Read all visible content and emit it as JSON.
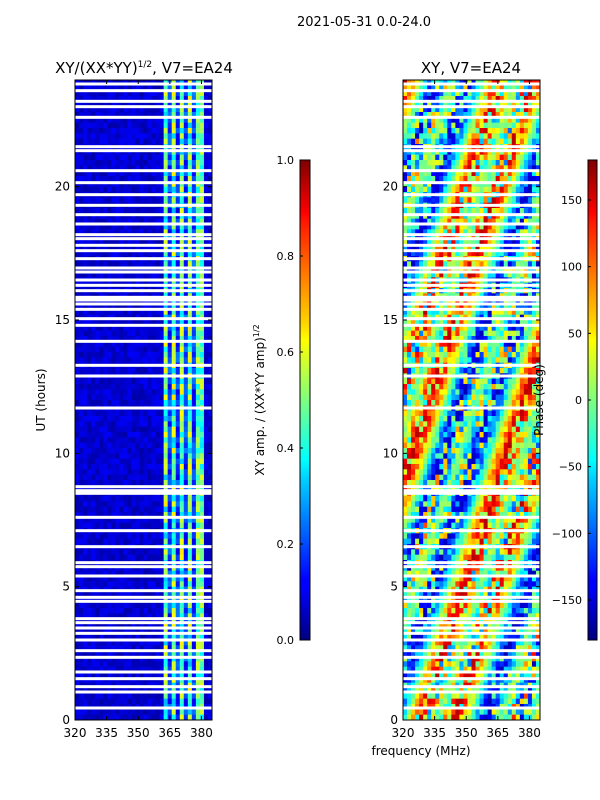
{
  "figure": {
    "suptitle": "2021-05-31 0.0-24.0",
    "xlabel": "frequency (MHz)"
  },
  "chart_data": [
    {
      "type": "heatmap",
      "id": "amp",
      "title_prefix": "XY/(XX*YY)",
      "title_sup": "1/2",
      "title_suffix": ", V7=EA24",
      "xlabel": "",
      "ylabel": "UT (hours)",
      "xlim": [
        320,
        385
      ],
      "ylim": [
        0,
        24
      ],
      "x_ticks": [
        320,
        335,
        350,
        365,
        380
      ],
      "y_ticks": [
        0,
        5,
        10,
        15,
        20
      ],
      "colormap": "jet",
      "colorbar": {
        "label_prefix": "XY amp. / (XX*YY amp)",
        "label_sup": "1/2",
        "vmin": 0.0,
        "vmax": 1.0,
        "ticks": [
          0.0,
          0.2,
          0.4,
          0.6,
          0.8,
          1.0
        ],
        "tick_labels": [
          "0.0",
          "0.2",
          "0.4",
          "0.6",
          "0.8",
          "1.0"
        ]
      }
    },
    {
      "type": "heatmap",
      "id": "phase",
      "title_prefix": "XY, V7=EA24",
      "title_sup": "",
      "title_suffix": "",
      "xlabel": "frequency (MHz)",
      "ylabel": "",
      "xlim": [
        320,
        385
      ],
      "ylim": [
        0,
        24
      ],
      "x_ticks": [
        320,
        335,
        350,
        365,
        380
      ],
      "y_ticks": [
        0,
        5,
        10,
        15,
        20
      ],
      "colormap": "jet",
      "colorbar": {
        "label_prefix": "Phase (deg)",
        "label_sup": "",
        "vmin": -180,
        "vmax": 180,
        "ticks": [
          -150,
          -100,
          -50,
          0,
          50,
          100,
          150
        ],
        "tick_labels": [
          "−150",
          "−100",
          "−50",
          "0",
          "50",
          "100",
          "150"
        ]
      }
    }
  ],
  "flagged_ut_hours": [
    0.45,
    1.05,
    1.25,
    1.55,
    1.8,
    2.35,
    2.6,
    3.0,
    3.25,
    3.45,
    3.65,
    3.8,
    4.45,
    4.6,
    4.85,
    5.4,
    5.75,
    5.9,
    6.5,
    7.1,
    7.6,
    8.5,
    8.6,
    8.75,
    11.7,
    12.9,
    13.3,
    14.2,
    14.8,
    15.05,
    15.4,
    15.6,
    15.75,
    15.85,
    16.1,
    16.3,
    16.5,
    16.8,
    16.95,
    17.3,
    17.6,
    17.8,
    18.05,
    18.2,
    18.6,
    18.95,
    19.3,
    19.7,
    20.15,
    20.6,
    21.35,
    21.5,
    22.6,
    23.0,
    23.2,
    23.6,
    23.85
  ]
}
